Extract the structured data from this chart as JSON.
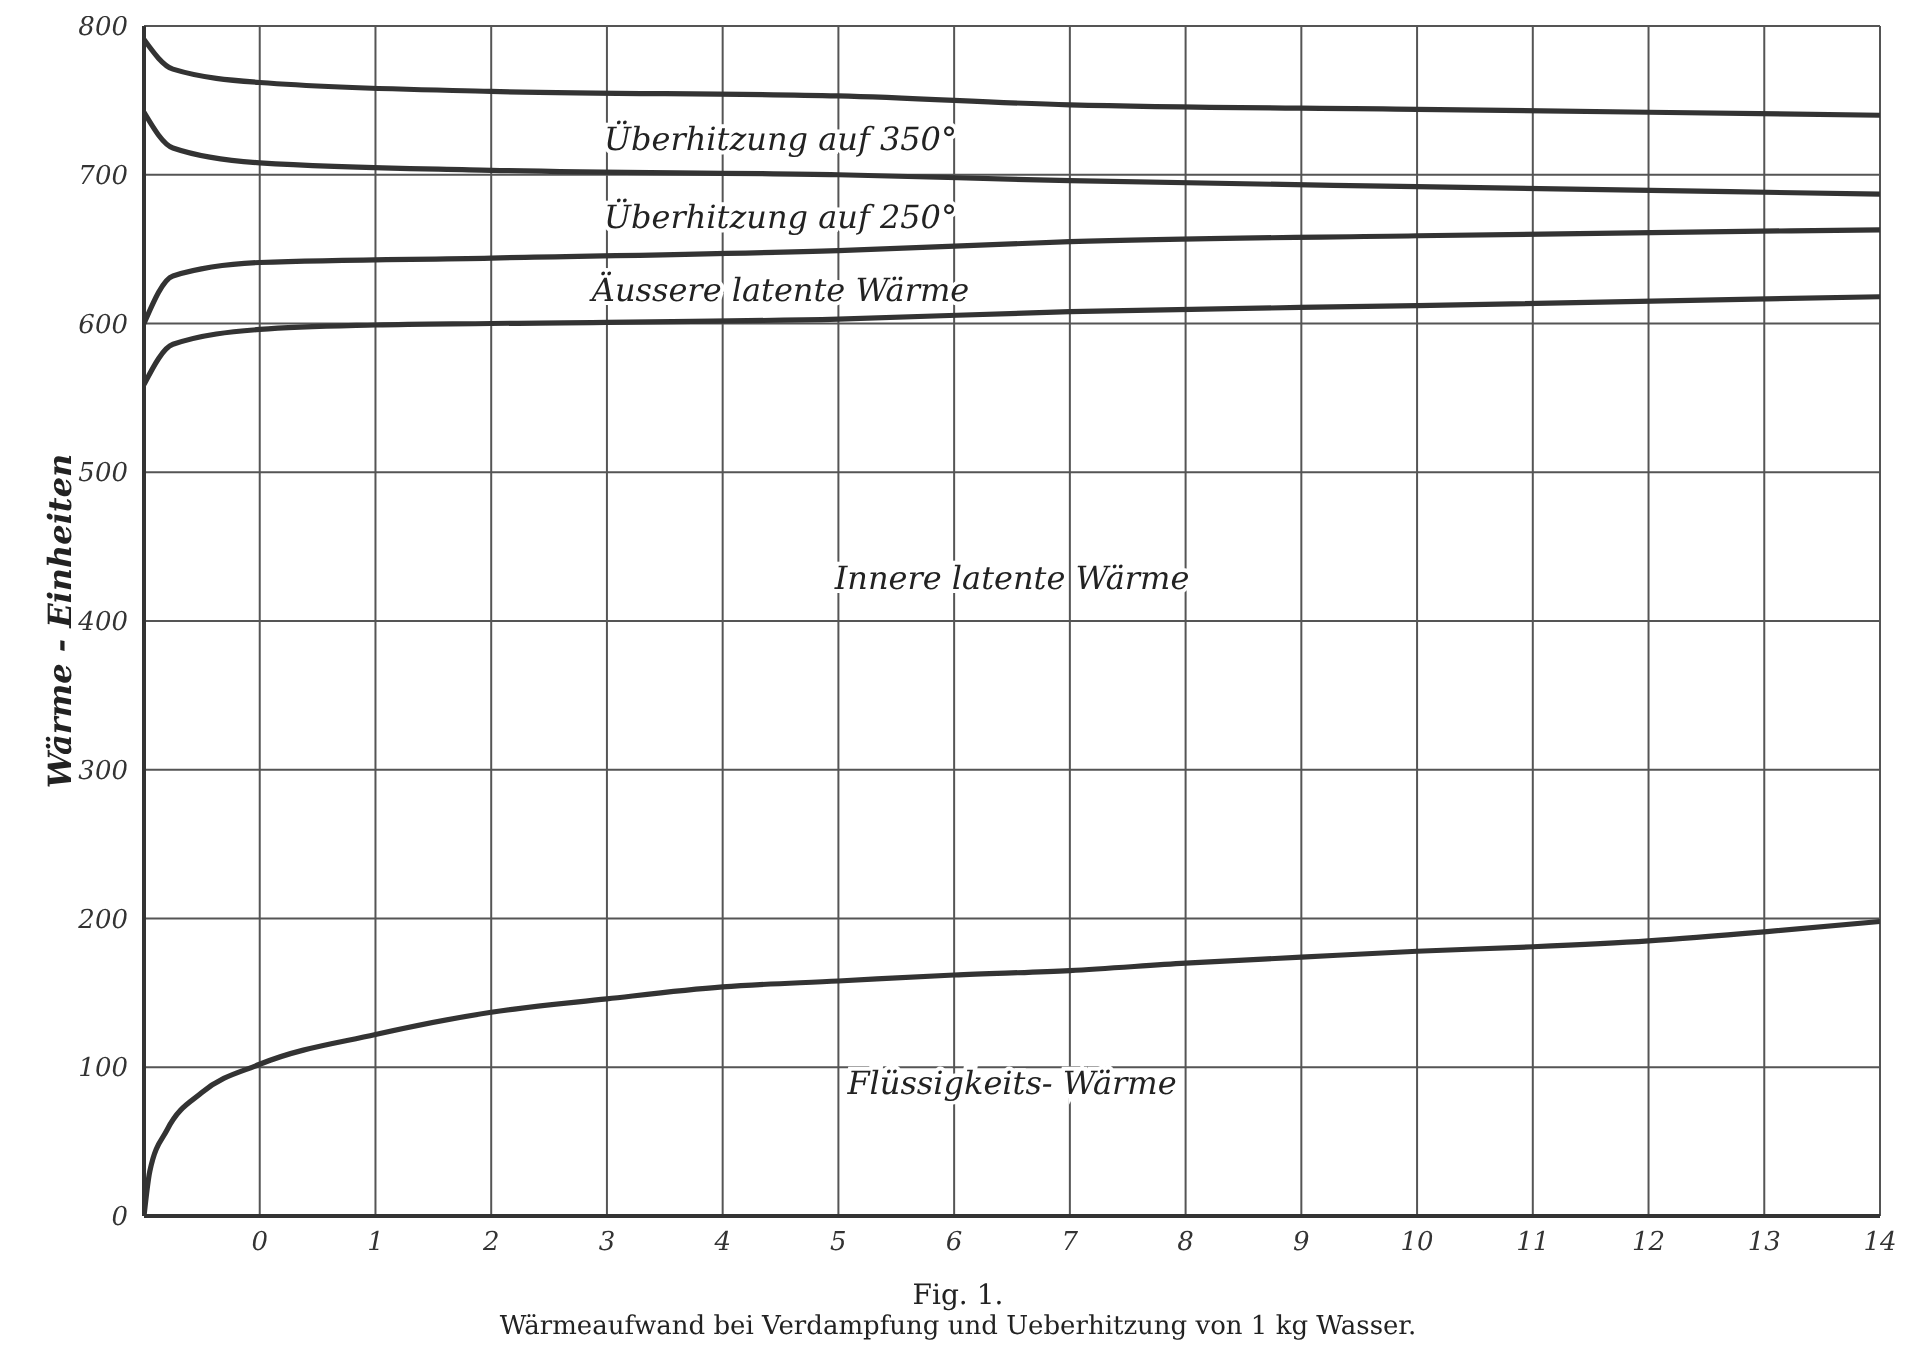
{
  "chart_data": {
    "type": "line",
    "title": "Fig. 1.",
    "subtitle": "Wärmeaufwand bei Verdampfung und Ueberhitzung von 1 kg Wasser.",
    "ylabel": "Wärme - Einheiten",
    "xlim": [
      -1,
      14
    ],
    "xticks": [
      0,
      1,
      2,
      3,
      4,
      5,
      6,
      7,
      8,
      9,
      10,
      11,
      12,
      13,
      14
    ],
    "ylim": [
      0,
      800
    ],
    "yticks": [
      0,
      100,
      200,
      300,
      400,
      500,
      600,
      700,
      800
    ],
    "grid": true,
    "legend": false,
    "marker": "none",
    "series": [
      {
        "color": "#333333",
        "x": [
          -1,
          -0.95,
          -0.8,
          -0.5,
          0,
          1,
          2,
          3,
          4,
          5,
          6,
          7,
          8,
          9,
          10,
          11,
          12,
          13,
          14
        ],
        "values": [
          0,
          30,
          58,
          83,
          102,
          122,
          137,
          146,
          154,
          158,
          162,
          165,
          170,
          174,
          178,
          181,
          185,
          191,
          198
        ]
      },
      {
        "color": "#333333",
        "x": [
          -1,
          -0.75,
          0,
          1,
          2,
          5,
          7,
          10,
          14
        ],
        "values": [
          559,
          586,
          596,
          599,
          600,
          603,
          608,
          612,
          618
        ]
      },
      {
        "color": "#333333",
        "x": [
          -1,
          -0.75,
          0,
          2,
          5,
          7,
          10,
          14
        ],
        "values": [
          600,
          632,
          641,
          644,
          649,
          655,
          659,
          663
        ]
      },
      {
        "color": "#333333",
        "x": [
          -1,
          -0.75,
          0,
          2,
          5,
          7,
          10,
          14
        ],
        "values": [
          742,
          718,
          708,
          703,
          700,
          696,
          692,
          687
        ]
      },
      {
        "color": "#333333",
        "x": [
          -1,
          -0.75,
          0,
          2,
          5,
          7,
          10,
          14
        ],
        "values": [
          791,
          771,
          762,
          756,
          753,
          747,
          744,
          740
        ]
      }
    ],
    "annotations": [
      "Überhitzung auf 350°",
      "Überhitzung auf 250°",
      "Äussere latente Wärme",
      "Innere latente Wärme",
      "Flüssigkeits- Wärme"
    ]
  }
}
